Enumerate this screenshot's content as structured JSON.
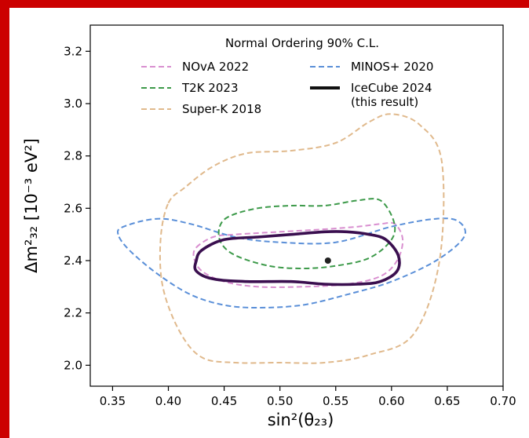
{
  "frame": {
    "color": "#cc0000"
  },
  "chart_data": {
    "type": "line",
    "xlabel": "sin²(θ₂₃)",
    "ylabel": "Δm²₃₂ [10⁻³ eV²]",
    "xlim": [
      0.33,
      0.7
    ],
    "ylim": [
      1.92,
      3.3
    ],
    "x_ticks": [
      0.35,
      0.4,
      0.45,
      0.5,
      0.55,
      0.6,
      0.65,
      0.7
    ],
    "x_tick_labels": [
      "0.35",
      "0.40",
      "0.45",
      "0.50",
      "0.55",
      "0.60",
      "0.65",
      "0.70"
    ],
    "y_ticks": [
      2.0,
      2.2,
      2.4,
      2.6,
      2.8,
      3.0,
      3.2
    ],
    "y_tick_labels": [
      "2.0",
      "2.2",
      "2.4",
      "2.6",
      "2.8",
      "3.0",
      "3.2"
    ],
    "grid": false,
    "legend": {
      "title": "Normal Ordering 90% C.L.",
      "placement": "top"
    },
    "series": [
      {
        "name": "NOvA 2022",
        "color": "#d98fd0",
        "style": "dashed",
        "x": [
          0.425,
          0.44,
          0.46,
          0.5,
          0.54,
          0.57,
          0.59,
          0.603,
          0.61,
          0.605,
          0.59,
          0.56,
          0.52,
          0.48,
          0.45,
          0.43,
          0.423,
          0.425
        ],
        "y": [
          2.45,
          2.49,
          2.5,
          2.51,
          2.52,
          2.53,
          2.54,
          2.54,
          2.48,
          2.4,
          2.34,
          2.31,
          2.3,
          2.3,
          2.32,
          2.36,
          2.41,
          2.45
        ]
      },
      {
        "name": "MINOS+ 2020",
        "color": "#5a8fd8",
        "style": "dashed",
        "x": [
          0.355,
          0.36,
          0.39,
          0.42,
          0.46,
          0.5,
          0.55,
          0.6,
          0.64,
          0.66,
          0.665,
          0.64,
          0.6,
          0.56,
          0.52,
          0.48,
          0.45,
          0.42,
          0.39,
          0.365,
          0.355
        ],
        "y": [
          2.5,
          2.53,
          2.56,
          2.54,
          2.49,
          2.47,
          2.47,
          2.53,
          2.56,
          2.55,
          2.49,
          2.4,
          2.32,
          2.27,
          2.23,
          2.22,
          2.23,
          2.27,
          2.35,
          2.44,
          2.5
        ]
      },
      {
        "name": "T2K 2023",
        "color": "#3d9a4a",
        "style": "dashed",
        "x": [
          0.446,
          0.455,
          0.48,
          0.51,
          0.54,
          0.57,
          0.59,
          0.602,
          0.6,
          0.58,
          0.55,
          0.52,
          0.49,
          0.46,
          0.447,
          0.446
        ],
        "y": [
          2.53,
          2.57,
          2.6,
          2.61,
          2.61,
          2.63,
          2.63,
          2.55,
          2.48,
          2.41,
          2.38,
          2.37,
          2.38,
          2.42,
          2.47,
          2.53
        ]
      },
      {
        "name": "IceCube 2024 (this result)",
        "color": "#3a0f4f",
        "style": "solid",
        "x": [
          0.425,
          0.43,
          0.45,
          0.48,
          0.51,
          0.54,
          0.56,
          0.58,
          0.595,
          0.606,
          0.605,
          0.59,
          0.57,
          0.54,
          0.51,
          0.47,
          0.44,
          0.425,
          0.425
        ],
        "y": [
          2.4,
          2.44,
          2.48,
          2.49,
          2.5,
          2.51,
          2.51,
          2.5,
          2.48,
          2.42,
          2.36,
          2.32,
          2.31,
          2.31,
          2.32,
          2.32,
          2.33,
          2.36,
          2.4
        ]
      },
      {
        "name": "Super-K 2018",
        "color": "#e0b98c",
        "style": "dashed",
        "x": [
          0.4,
          0.415,
          0.44,
          0.47,
          0.51,
          0.55,
          0.58,
          0.6,
          0.625,
          0.645,
          0.643,
          0.62,
          0.58,
          0.54,
          0.5,
          0.46,
          0.43,
          0.41,
          0.395,
          0.393,
          0.4
        ],
        "y": [
          2.62,
          2.68,
          2.76,
          2.81,
          2.82,
          2.85,
          2.93,
          2.96,
          2.92,
          2.78,
          2.4,
          2.12,
          2.04,
          2.01,
          2.01,
          2.01,
          2.03,
          2.13,
          2.3,
          2.48,
          2.62
        ]
      }
    ],
    "best_fit": {
      "x": 0.543,
      "y": 2.4,
      "color": "#222222"
    }
  },
  "legend_entries": [
    {
      "label": "NOvA 2022",
      "color": "#d98fd0",
      "style": "dashed"
    },
    {
      "label": "MINOS+ 2020",
      "color": "#5a8fd8",
      "style": "dashed"
    },
    {
      "label": "T2K 2023",
      "color": "#3d9a4a",
      "style": "dashed"
    },
    {
      "label": "IceCube 2024",
      "label2": "(this result)",
      "color": "#111111",
      "style": "solid"
    },
    {
      "label": "Super-K 2018",
      "color": "#e0b98c",
      "style": "dashed"
    }
  ]
}
